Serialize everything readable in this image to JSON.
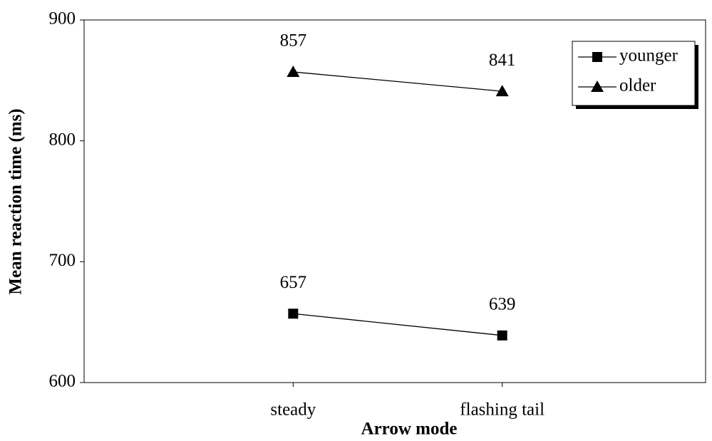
{
  "chart_data": {
    "type": "line",
    "xlabel": "Arrow mode",
    "ylabel": "Mean reaction time (ms)",
    "categories": [
      "steady",
      "flashing tail"
    ],
    "series": [
      {
        "name": "younger",
        "color": "#000000",
        "marker": "square",
        "values": [
          657,
          639
        ]
      },
      {
        "name": "older",
        "color": "#000000",
        "marker": "triangle",
        "values": [
          857,
          841
        ]
      }
    ],
    "ylim": [
      600,
      900
    ],
    "yticks": [
      600,
      700,
      800,
      900
    ],
    "grid": false,
    "legend": "upper right",
    "data_labels": true
  }
}
